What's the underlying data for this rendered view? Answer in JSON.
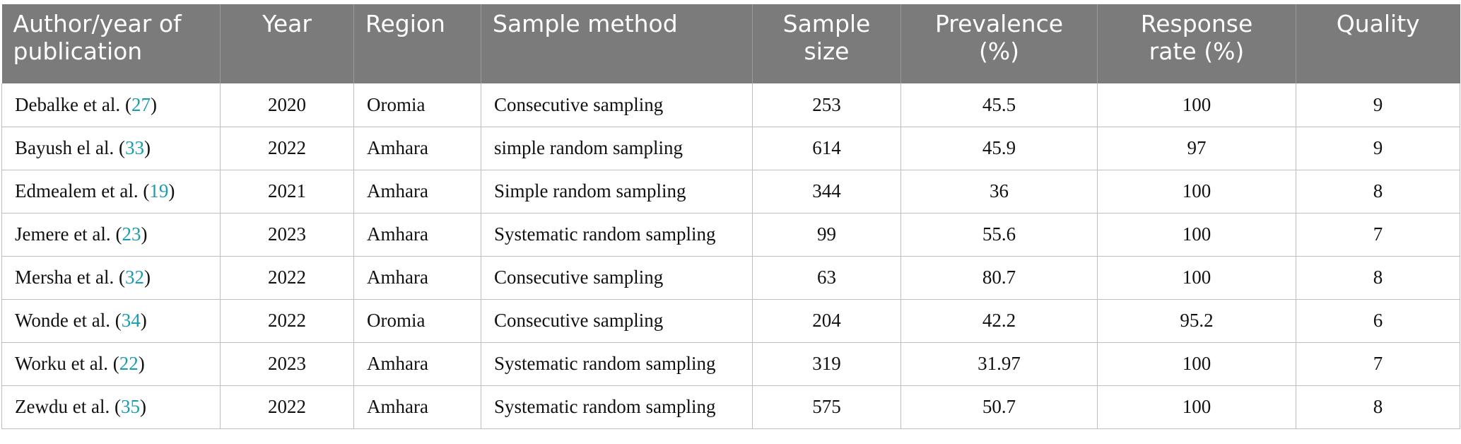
{
  "table": {
    "headers": [
      {
        "line1": "Author/year of",
        "line2": "publication",
        "align": "left"
      },
      {
        "line1": "Year",
        "line2": "",
        "align": "center"
      },
      {
        "line1": "Region",
        "line2": "",
        "align": "left"
      },
      {
        "line1": "Sample method",
        "line2": "",
        "align": "left"
      },
      {
        "line1": "Sample",
        "line2": "size",
        "align": "center"
      },
      {
        "line1": "Prevalence",
        "line2": "(%)",
        "align": "center"
      },
      {
        "line1": "Response",
        "line2": "rate (%)",
        "align": "center"
      },
      {
        "line1": "Quality",
        "line2": "",
        "align": "center"
      }
    ],
    "rows": [
      {
        "author": "Debalke et al.",
        "ref": "27",
        "year": "2020",
        "region": "Oromia",
        "method": "Consecutive sampling",
        "size": "253",
        "prevalence": "45.5",
        "response": "100",
        "quality": "9"
      },
      {
        "author": "Bayush el al.",
        "ref": "33",
        "year": "2022",
        "region": "Amhara",
        "method": "simple random sampling",
        "size": "614",
        "prevalence": "45.9",
        "response": "97",
        "quality": "9"
      },
      {
        "author": "Edmealem et al.",
        "ref": "19",
        "year": "2021",
        "region": "Amhara",
        "method": "Simple random sampling",
        "size": "344",
        "prevalence": "36",
        "response": "100",
        "quality": "8"
      },
      {
        "author": "Jemere et al.",
        "ref": "23",
        "year": "2023",
        "region": "Amhara",
        "method": "Systematic random sampling",
        "size": "99",
        "prevalence": "55.6",
        "response": "100",
        "quality": "7"
      },
      {
        "author": "Mersha et al.",
        "ref": "32",
        "year": "2022",
        "region": "Amhara",
        "method": "Consecutive sampling",
        "size": "63",
        "prevalence": "80.7",
        "response": "100",
        "quality": "8"
      },
      {
        "author": "Wonde et al.",
        "ref": "34",
        "year": "2022",
        "region": "Oromia",
        "method": "Consecutive sampling",
        "size": "204",
        "prevalence": "42.2",
        "response": "95.2",
        "quality": "6"
      },
      {
        "author": "Worku et al.",
        "ref": "22",
        "year": "2023",
        "region": "Amhara",
        "method": "Systematic random sampling",
        "size": "319",
        "prevalence": "31.97",
        "response": "100",
        "quality": "7"
      },
      {
        "author": "Zewdu et al.",
        "ref": "35",
        "year": "2022",
        "region": "Amhara",
        "method": "Systematic random sampling",
        "size": "575",
        "prevalence": "50.7",
        "response": "100",
        "quality": "8"
      }
    ]
  },
  "colors": {
    "header_bg": "#7b7b7b",
    "header_text": "#ffffff",
    "reference_link": "#1a9bb0",
    "grid_line": "#bdbdbd"
  }
}
